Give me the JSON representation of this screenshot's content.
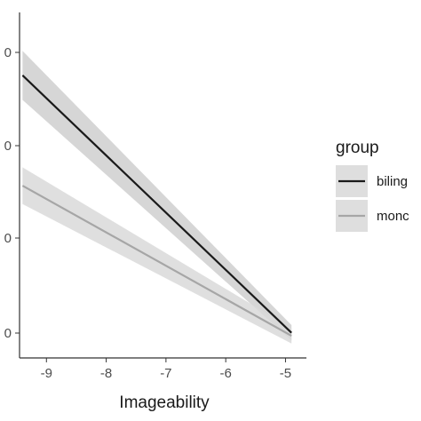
{
  "chart_data": {
    "type": "line",
    "xlabel": "Imageability",
    "x_ticks": [
      "-9",
      "-8",
      "-7",
      "-6",
      "-5"
    ],
    "y_ticks": [
      "0",
      "0",
      "0",
      "0"
    ],
    "xlim": [
      -9.45,
      -4.65
    ],
    "ylim": [
      0,
      1
    ],
    "grid": false,
    "confidence_band": true,
    "legend": {
      "title": "group",
      "position": "right",
      "labels": [
        "biling",
        "monc"
      ]
    },
    "series": [
      {
        "name": "biling",
        "color": "#1a1a1a",
        "band_color": "#cfcfcf",
        "x": [
          -9.4,
          -4.9
        ],
        "y": [
          0.87,
          0.03
        ],
        "ci_half_width": [
          0.08,
          0.025
        ]
      },
      {
        "name": "monc",
        "color": "#a6a6a6",
        "band_color": "#d9d9d9",
        "x": [
          -9.4,
          -4.9
        ],
        "y": [
          0.51,
          0.02
        ],
        "ci_half_width": [
          0.06,
          0.025
        ]
      }
    ]
  }
}
